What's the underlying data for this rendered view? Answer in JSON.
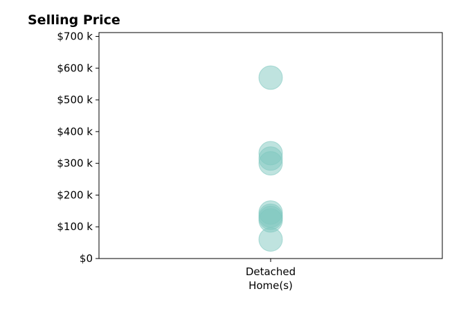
{
  "chart_data": {
    "type": "scatter",
    "title": "Selling Price",
    "xlabel": "",
    "ylabel": "",
    "categories": [
      "Detached\nHome(s)"
    ],
    "y_ticks": [
      {
        "value": 0,
        "label": "$0"
      },
      {
        "value": 100000,
        "label": "$100 k"
      },
      {
        "value": 200000,
        "label": "$200 k"
      },
      {
        "value": 300000,
        "label": "$300 k"
      },
      {
        "value": 400000,
        "label": "$400 k"
      },
      {
        "value": 500000,
        "label": "$500 k"
      },
      {
        "value": 600000,
        "label": "$600 k"
      },
      {
        "value": 700000,
        "label": "$700 k"
      }
    ],
    "ylim": [
      0,
      712000
    ],
    "grid": false,
    "marker_color": "#7fc8c0",
    "series": [
      {
        "values": [
          570000,
          332000,
          315000,
          300000,
          145000,
          135000,
          128000,
          120000,
          60000
        ]
      }
    ]
  }
}
